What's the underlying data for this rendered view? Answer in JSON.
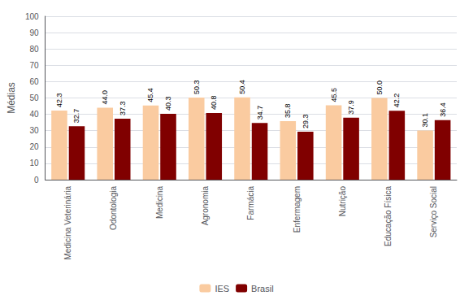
{
  "chart_data": {
    "type": "bar",
    "ylabel": "Médias",
    "categories": [
      "Medicina Veterinária",
      "Odontologia",
      "Medicina",
      "Agronomia",
      "Farmácia",
      "Enfermagem",
      "Nutrição",
      "Educação Física",
      "Serviço Social"
    ],
    "series": [
      {
        "name": "IES",
        "color": "#FACBA0",
        "values": [
          42.3,
          44.0,
          45.4,
          50.3,
          50.4,
          35.8,
          45.5,
          50.0,
          30.1
        ],
        "value_labels": [
          "42.3",
          "44.0",
          "45.4",
          "50.3",
          "50.4",
          "35.8",
          "45.5",
          "50.0",
          "30.1"
        ]
      },
      {
        "name": "Brasil",
        "color": "#800000",
        "values": [
          32.7,
          37.3,
          40.3,
          40.8,
          34.7,
          29.3,
          37.9,
          42.2,
          36.4
        ],
        "value_labels": [
          "32.7",
          "37.3",
          "40.3",
          "40.8",
          "34.7",
          "29.3",
          "37.9",
          "42.2",
          "36.4"
        ]
      }
    ],
    "ylim": [
      0,
      100
    ],
    "yticks": [
      0,
      10,
      20,
      30,
      40,
      50,
      60,
      70,
      80,
      90,
      100
    ],
    "grid": true,
    "legend": "bottom",
    "data_labels": true
  }
}
